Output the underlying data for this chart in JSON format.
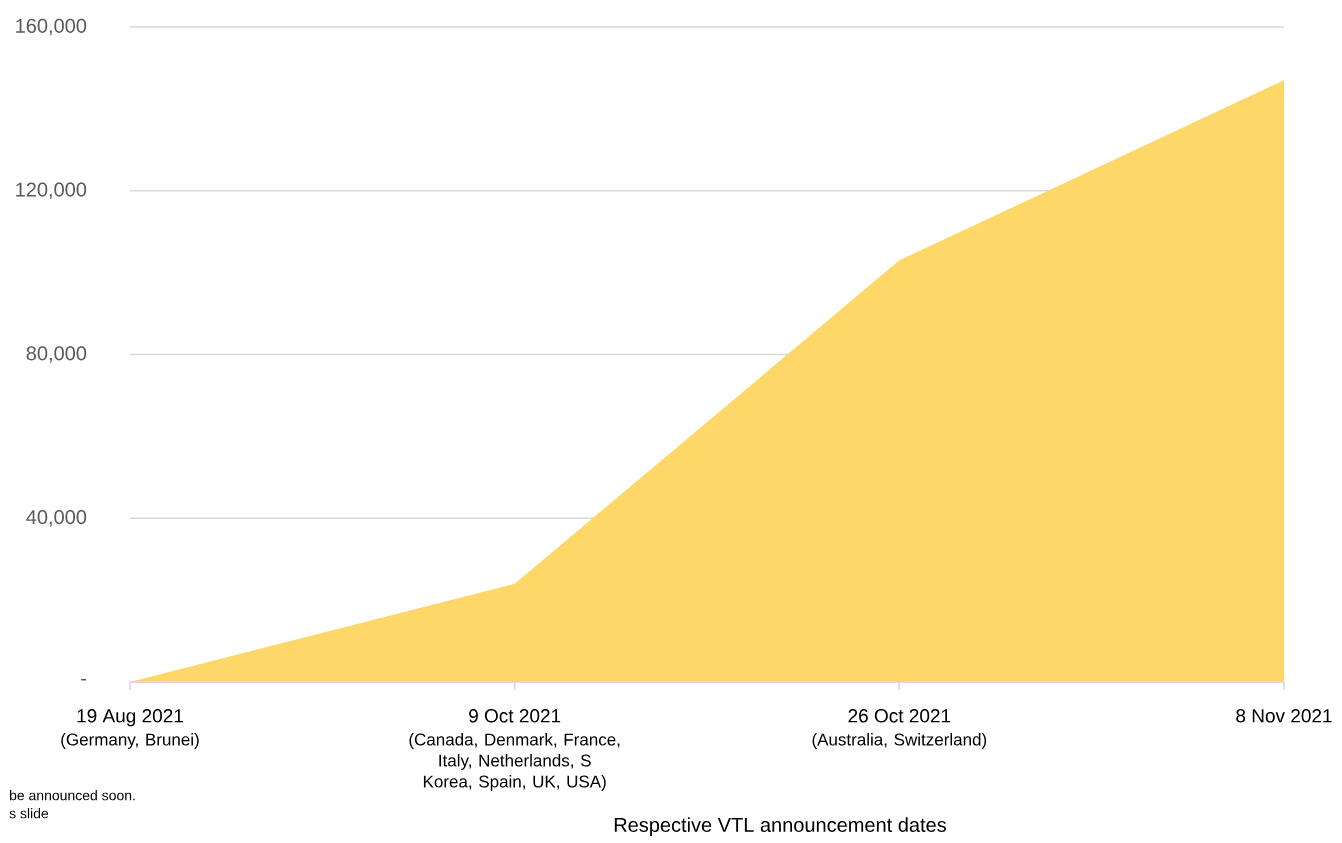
{
  "chart_data": {
    "type": "area",
    "xlabel": "Respective VTL announcement dates",
    "categories": [
      "19 Aug 2021",
      "9 Oct 2021",
      "26 Oct 2021",
      "8 Nov 2021"
    ],
    "series": [
      {
        "color": "#fdd868",
        "values": [
          0,
          24000,
          103000,
          147000
        ]
      }
    ],
    "ylim": [
      0,
      160000
    ],
    "yticks": [
      {
        "value": 0,
        "label": "-"
      },
      {
        "value": 40000,
        "label": "40,000"
      },
      {
        "value": 80000,
        "label": "80,000"
      },
      {
        "value": 120000,
        "label": "120,000"
      },
      {
        "value": 160000,
        "label": "160,000"
      }
    ],
    "grid": "y",
    "annotations": [
      "(Germany, Brunei)",
      "(Canada, Denmark, France, Italy, Netherlands, S Korea, Spain, UK, USA)",
      "(Australia, Switzerland)",
      "be announced soon.",
      "s slide"
    ]
  }
}
